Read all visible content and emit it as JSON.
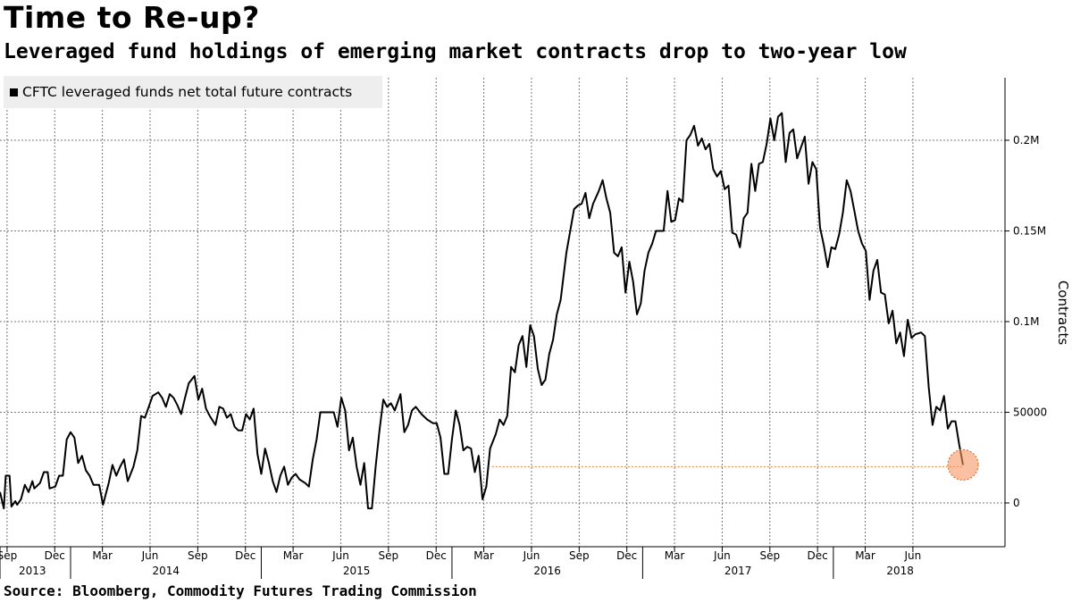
{
  "chart_data": {
    "type": "line",
    "title": "Time to Re-up?",
    "subtitle": "Leveraged fund holdings of emerging market contracts drop to two-year low",
    "ylabel": "Contracts",
    "ylim": [
      -25000,
      235000
    ],
    "yticks": [
      {
        "value": 0,
        "label": "0"
      },
      {
        "value": 50000,
        "label": "50000"
      },
      {
        "value": 100000,
        "label": "0.1M"
      },
      {
        "value": 150000,
        "label": "0.15M"
      },
      {
        "value": 200000,
        "label": "0.2M"
      }
    ],
    "xlim": [
      2013.63,
      2018.9
    ],
    "month_ticks": [
      {
        "t": 2013.667,
        "label": "Sep"
      },
      {
        "t": 2013.917,
        "label": "Dec"
      },
      {
        "t": 2014.167,
        "label": "Mar"
      },
      {
        "t": 2014.417,
        "label": "Jun"
      },
      {
        "t": 2014.667,
        "label": "Sep"
      },
      {
        "t": 2014.917,
        "label": "Dec"
      },
      {
        "t": 2015.167,
        "label": "Mar"
      },
      {
        "t": 2015.417,
        "label": "Jun"
      },
      {
        "t": 2015.667,
        "label": "Sep"
      },
      {
        "t": 2015.917,
        "label": "Dec"
      },
      {
        "t": 2016.167,
        "label": "Mar"
      },
      {
        "t": 2016.417,
        "label": "Jun"
      },
      {
        "t": 2016.667,
        "label": "Sep"
      },
      {
        "t": 2016.917,
        "label": "Dec"
      },
      {
        "t": 2017.167,
        "label": "Mar"
      },
      {
        "t": 2017.417,
        "label": "Jun"
      },
      {
        "t": 2017.667,
        "label": "Sep"
      },
      {
        "t": 2017.917,
        "label": "Dec"
      },
      {
        "t": 2018.167,
        "label": "Mar"
      },
      {
        "t": 2018.417,
        "label": "Jun"
      }
    ],
    "year_labels": [
      {
        "t": 2013.8,
        "label": "2013"
      },
      {
        "t": 2014.5,
        "label": "2014"
      },
      {
        "t": 2015.5,
        "label": "2015"
      },
      {
        "t": 2016.5,
        "label": "2016"
      },
      {
        "t": 2017.5,
        "label": "2017"
      },
      {
        "t": 2018.35,
        "label": "2018"
      }
    ],
    "year_separators": [
      2014.0,
      2015.0,
      2016.0,
      2017.0,
      2018.0
    ],
    "series": [
      {
        "name": "CFTC leveraged funds net total future contracts",
        "color": "#000000",
        "points": [
          [
            2013.63,
            6000
          ],
          [
            2013.65,
            -3000
          ],
          [
            2013.66,
            15000
          ],
          [
            2013.68,
            15000
          ],
          [
            2013.69,
            -2000
          ],
          [
            2013.71,
            1000
          ],
          [
            2013.72,
            -1000
          ],
          [
            2013.74,
            2000
          ],
          [
            2013.76,
            10000
          ],
          [
            2013.78,
            6000
          ],
          [
            2013.8,
            12000
          ],
          [
            2013.81,
            8000
          ],
          [
            2013.84,
            11000
          ],
          [
            2013.86,
            17000
          ],
          [
            2013.88,
            17000
          ],
          [
            2013.89,
            8000
          ],
          [
            2013.92,
            9000
          ],
          [
            2013.94,
            15000
          ],
          [
            2013.96,
            15000
          ],
          [
            2013.98,
            35000
          ],
          [
            2014.0,
            39000
          ],
          [
            2014.02,
            36000
          ],
          [
            2014.04,
            22000
          ],
          [
            2014.06,
            26000
          ],
          [
            2014.08,
            18000
          ],
          [
            2014.1,
            15000
          ],
          [
            2014.12,
            10000
          ],
          [
            2014.15,
            10000
          ],
          [
            2014.17,
            -1000
          ],
          [
            2014.2,
            11000
          ],
          [
            2014.22,
            21000
          ],
          [
            2014.24,
            15000
          ],
          [
            2014.26,
            20000
          ],
          [
            2014.28,
            24000
          ],
          [
            2014.3,
            12000
          ],
          [
            2014.33,
            20000
          ],
          [
            2014.35,
            29000
          ],
          [
            2014.37,
            48000
          ],
          [
            2014.39,
            47000
          ],
          [
            2014.41,
            53000
          ],
          [
            2014.43,
            59000
          ],
          [
            2014.46,
            61000
          ],
          [
            2014.48,
            58000
          ],
          [
            2014.5,
            53000
          ],
          [
            2014.52,
            60000
          ],
          [
            2014.54,
            58000
          ],
          [
            2014.56,
            54000
          ],
          [
            2014.58,
            49000
          ],
          [
            2014.6,
            58000
          ],
          [
            2014.62,
            66000
          ],
          [
            2014.65,
            70000
          ],
          [
            2014.67,
            57000
          ],
          [
            2014.69,
            63000
          ],
          [
            2014.71,
            52000
          ],
          [
            2014.73,
            48000
          ],
          [
            2014.76,
            43000
          ],
          [
            2014.78,
            53000
          ],
          [
            2014.8,
            52000
          ],
          [
            2014.82,
            47000
          ],
          [
            2014.84,
            49000
          ],
          [
            2014.86,
            42000
          ],
          [
            2014.88,
            40000
          ],
          [
            2014.9,
            40000
          ],
          [
            2014.92,
            49000
          ],
          [
            2014.94,
            46000
          ],
          [
            2014.96,
            52000
          ],
          [
            2014.98,
            27000
          ],
          [
            2015.0,
            16000
          ],
          [
            2015.02,
            30000
          ],
          [
            2015.04,
            22000
          ],
          [
            2015.06,
            12000
          ],
          [
            2015.08,
            6000
          ],
          [
            2015.1,
            15000
          ],
          [
            2015.12,
            20000
          ],
          [
            2015.14,
            10000
          ],
          [
            2015.16,
            14000
          ],
          [
            2015.18,
            16000
          ],
          [
            2015.2,
            13000
          ],
          [
            2015.23,
            11000
          ],
          [
            2015.25,
            9000
          ],
          [
            2015.27,
            24000
          ],
          [
            2015.29,
            35000
          ],
          [
            2015.31,
            50000
          ],
          [
            2015.33,
            50000
          ],
          [
            2015.35,
            50000
          ],
          [
            2015.38,
            50000
          ],
          [
            2015.4,
            42000
          ],
          [
            2015.42,
            58000
          ],
          [
            2015.44,
            51000
          ],
          [
            2015.46,
            29000
          ],
          [
            2015.48,
            36000
          ],
          [
            2015.5,
            20000
          ],
          [
            2015.52,
            10000
          ],
          [
            2015.54,
            22000
          ],
          [
            2015.56,
            -3000
          ],
          [
            2015.58,
            -3000
          ],
          [
            2015.6,
            20000
          ],
          [
            2015.62,
            40000
          ],
          [
            2015.64,
            57000
          ],
          [
            2015.66,
            53000
          ],
          [
            2015.68,
            55000
          ],
          [
            2015.7,
            51000
          ],
          [
            2015.73,
            60000
          ],
          [
            2015.75,
            39000
          ],
          [
            2015.77,
            43000
          ],
          [
            2015.79,
            51000
          ],
          [
            2015.81,
            53000
          ],
          [
            2015.84,
            49000
          ],
          [
            2015.87,
            46000
          ],
          [
            2015.9,
            44000
          ],
          [
            2015.92,
            44000
          ],
          [
            2015.94,
            36000
          ],
          [
            2015.96,
            16000
          ],
          [
            2015.98,
            16000
          ],
          [
            2016.0,
            35000
          ],
          [
            2016.02,
            51000
          ],
          [
            2016.04,
            43000
          ],
          [
            2016.06,
            29000
          ],
          [
            2016.08,
            31000
          ],
          [
            2016.1,
            30000
          ],
          [
            2016.12,
            17000
          ],
          [
            2016.14,
            26000
          ],
          [
            2016.16,
            2000
          ],
          [
            2016.18,
            9000
          ],
          [
            2016.2,
            30000
          ],
          [
            2016.23,
            38000
          ],
          [
            2016.25,
            46000
          ],
          [
            2016.27,
            43000
          ],
          [
            2016.29,
            48000
          ],
          [
            2016.31,
            75000
          ],
          [
            2016.33,
            72000
          ],
          [
            2016.35,
            87000
          ],
          [
            2016.37,
            92000
          ],
          [
            2016.39,
            75000
          ],
          [
            2016.41,
            98000
          ],
          [
            2016.43,
            92000
          ],
          [
            2016.45,
            74000
          ],
          [
            2016.47,
            65000
          ],
          [
            2016.49,
            68000
          ],
          [
            2016.51,
            82000
          ],
          [
            2016.53,
            90000
          ],
          [
            2016.55,
            104000
          ],
          [
            2016.57,
            112000
          ],
          [
            2016.6,
            138000
          ],
          [
            2016.62,
            150000
          ],
          [
            2016.64,
            162000
          ],
          [
            2016.66,
            164000
          ],
          [
            2016.68,
            165000
          ],
          [
            2016.7,
            171000
          ],
          [
            2016.72,
            157000
          ],
          [
            2016.74,
            165000
          ],
          [
            2016.77,
            172000
          ],
          [
            2016.79,
            178000
          ],
          [
            2016.81,
            168000
          ],
          [
            2016.83,
            160000
          ],
          [
            2016.85,
            138000
          ],
          [
            2016.87,
            136000
          ],
          [
            2016.89,
            141000
          ],
          [
            2016.91,
            116000
          ],
          [
            2016.93,
            133000
          ],
          [
            2016.95,
            122000
          ],
          [
            2016.97,
            104000
          ],
          [
            2016.99,
            110000
          ],
          [
            2017.01,
            128000
          ],
          [
            2017.03,
            138000
          ],
          [
            2017.05,
            143000
          ],
          [
            2017.07,
            150000
          ],
          [
            2017.09,
            150000
          ],
          [
            2017.11,
            150000
          ],
          [
            2017.13,
            172000
          ],
          [
            2017.15,
            155000
          ],
          [
            2017.17,
            156000
          ],
          [
            2017.19,
            168000
          ],
          [
            2017.21,
            166000
          ],
          [
            2017.23,
            200000
          ],
          [
            2017.25,
            203000
          ],
          [
            2017.27,
            208000
          ],
          [
            2017.29,
            197000
          ],
          [
            2017.31,
            201000
          ],
          [
            2017.33,
            195000
          ],
          [
            2017.35,
            198000
          ],
          [
            2017.37,
            184000
          ],
          [
            2017.39,
            180000
          ],
          [
            2017.41,
            183000
          ],
          [
            2017.43,
            173000
          ],
          [
            2017.45,
            175000
          ],
          [
            2017.47,
            149000
          ],
          [
            2017.49,
            148000
          ],
          [
            2017.51,
            141000
          ],
          [
            2017.53,
            157000
          ],
          [
            2017.55,
            160000
          ],
          [
            2017.57,
            187000
          ],
          [
            2017.59,
            172000
          ],
          [
            2017.61,
            187000
          ],
          [
            2017.63,
            188000
          ],
          [
            2017.65,
            198000
          ],
          [
            2017.67,
            212000
          ],
          [
            2017.69,
            200000
          ],
          [
            2017.71,
            213000
          ],
          [
            2017.73,
            215000
          ],
          [
            2017.75,
            188000
          ],
          [
            2017.77,
            204000
          ],
          [
            2017.79,
            206000
          ],
          [
            2017.81,
            190000
          ],
          [
            2017.83,
            196000
          ],
          [
            2017.85,
            202000
          ],
          [
            2017.87,
            176000
          ],
          [
            2017.89,
            188000
          ],
          [
            2017.91,
            184000
          ],
          [
            2017.93,
            152000
          ],
          [
            2017.95,
            142000
          ],
          [
            2017.97,
            130000
          ],
          [
            2017.99,
            141000
          ],
          [
            2018.01,
            140000
          ],
          [
            2018.03,
            148000
          ],
          [
            2018.05,
            160000
          ],
          [
            2018.07,
            178000
          ],
          [
            2018.09,
            172000
          ],
          [
            2018.11,
            161000
          ],
          [
            2018.13,
            150000
          ],
          [
            2018.15,
            143000
          ],
          [
            2018.17,
            139000
          ],
          [
            2018.19,
            112000
          ],
          [
            2018.21,
            128000
          ],
          [
            2018.23,
            134000
          ],
          [
            2018.25,
            116000
          ],
          [
            2018.27,
            115000
          ],
          [
            2018.29,
            99000
          ],
          [
            2018.31,
            106000
          ],
          [
            2018.33,
            88000
          ],
          [
            2018.35,
            94000
          ],
          [
            2018.37,
            81000
          ],
          [
            2018.39,
            101000
          ],
          [
            2018.41,
            91000
          ],
          [
            2018.43,
            93000
          ],
          [
            2018.46,
            94000
          ],
          [
            2018.48,
            92000
          ],
          [
            2018.5,
            64000
          ],
          [
            2018.52,
            43000
          ],
          [
            2018.54,
            53000
          ],
          [
            2018.56,
            51000
          ],
          [
            2018.58,
            59000
          ],
          [
            2018.6,
            41000
          ],
          [
            2018.62,
            45000
          ],
          [
            2018.64,
            45000
          ],
          [
            2018.66,
            32000
          ],
          [
            2018.68,
            21000
          ]
        ]
      }
    ],
    "annotation": {
      "type": "reference-line",
      "y": 20000,
      "x_start": 2016.21,
      "x_end": 2018.68,
      "color": "#f08030"
    }
  },
  "source": "Source: Bloomberg, Commodity Futures Trading Commission"
}
